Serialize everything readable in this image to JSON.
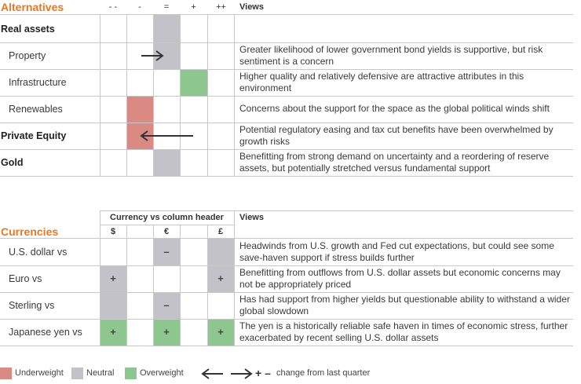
{
  "alternatives": {
    "title": "Alternatives",
    "columns": [
      "- -",
      "-",
      "=",
      "+",
      "++"
    ],
    "views_header": "Views",
    "rows": [
      {
        "label": "Real assets",
        "view": ""
      },
      {
        "label": "Property",
        "view": "Greater likelihood of lower government bond yields is supportive, but risk sentiment is a concern"
      },
      {
        "label": "Infrastructure",
        "view": "Higher quality and relatively defensive are attractive attributes in this environment"
      },
      {
        "label": "Renewables",
        "view": "Concerns about the support for the space as the global political winds shift"
      },
      {
        "label": "Private Equity",
        "view": "Potential regulatory easing and tax cut benefits have been overwhelmed by growth risks"
      },
      {
        "label": "Gold",
        "view": "Benefitting from strong demand on uncertainty and a reordering of reserve assets, but potentially stretched versus fundamental support"
      }
    ]
  },
  "currencies": {
    "title": "Currencies",
    "column_group_header": "Currency vs column header",
    "views_header": "Views",
    "columns": [
      "$",
      "€",
      "£"
    ],
    "rows": [
      {
        "label": "U.S. dollar vs",
        "signs": [
          "",
          "–",
          ""
        ],
        "view": "Headwinds from U.S. growth and Fed cut expectations, but could see some save-haven support if stress builds further"
      },
      {
        "label": "Euro vs",
        "signs": [
          "+",
          "",
          "+"
        ],
        "view": "Benefitting from outflows from U.S. dollar assets but economic concerns may not be appropriately priced"
      },
      {
        "label": "Sterling vs",
        "signs": [
          "",
          "–",
          ""
        ],
        "view": "Has had support from higher yields but questionable ability to withstand a wider global slowdown"
      },
      {
        "label": "Japanese yen vs",
        "signs": [
          "+",
          "+",
          "+"
        ],
        "view": "The yen is a historically reliable safe haven in times of economic stress, further exacerbated by recent selling U.S. dollar assets"
      }
    ]
  },
  "legend": {
    "underweight": "Underweight",
    "neutral": "Neutral",
    "overweight": "Overweight",
    "plus_minus": "+ –",
    "change": "change from last quarter"
  },
  "colors": {
    "accent": "#e87722",
    "underweight": "#d88a83",
    "neutral": "#c3c2c8",
    "overweight": "#8dc78f"
  }
}
